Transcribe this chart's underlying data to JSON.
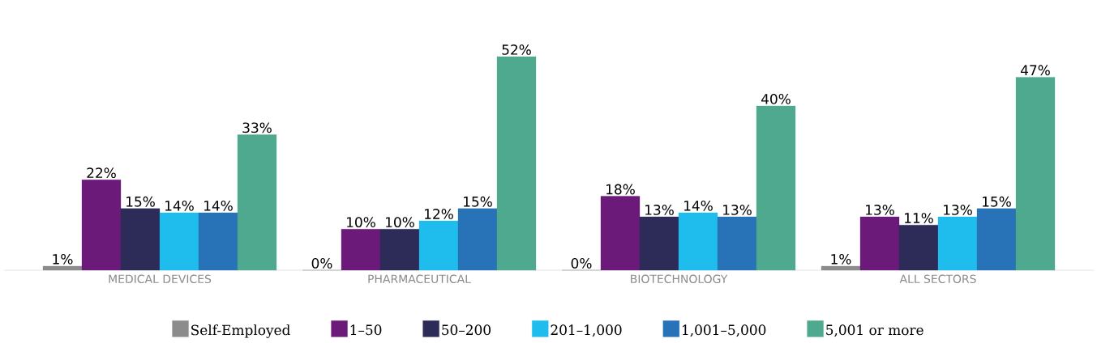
{
  "chart_data": {
    "type": "bar",
    "categories": [
      "MEDICAL DEVICES",
      "PHARMACEUTICAL",
      "BIOTECHNOLOGY",
      "ALL SECTORS"
    ],
    "series": [
      {
        "name": "Self-Employed",
        "color": "#8c8c8c",
        "values": [
          1,
          0,
          0,
          1
        ],
        "value_labels": [
          "1%",
          "0%",
          "0%",
          "1%"
        ]
      },
      {
        "name": "1–50",
        "color": "#6b1a7a",
        "values": [
          22,
          10,
          18,
          13
        ],
        "value_labels": [
          "22%",
          "10%",
          "18%",
          "13%"
        ]
      },
      {
        "name": "50–200",
        "color": "#2d2b57",
        "values": [
          15,
          10,
          13,
          11
        ],
        "value_labels": [
          "15%",
          "10%",
          "13%",
          "11%"
        ]
      },
      {
        "name": "201–1,000",
        "color": "#1fbcee",
        "values": [
          14,
          12,
          14,
          13
        ],
        "value_labels": [
          "14%",
          "12%",
          "14%",
          "13%"
        ]
      },
      {
        "name": "1,001–5,000",
        "color": "#2872b8",
        "values": [
          14,
          15,
          13,
          15
        ],
        "value_labels": [
          "14%",
          "15%",
          "13%",
          "15%"
        ]
      },
      {
        "name": "5,001 or more",
        "color": "#4fa98e",
        "values": [
          33,
          52,
          40,
          47
        ],
        "value_labels": [
          "33%",
          "52%",
          "40%",
          "47%"
        ]
      }
    ],
    "legend": "bottom"
  }
}
